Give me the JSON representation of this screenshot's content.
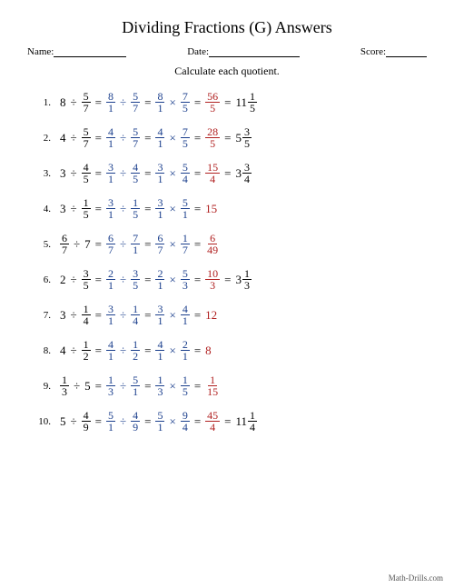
{
  "title": "Dividing Fractions (G) Answers",
  "labels": {
    "name": "Name:",
    "date": "Date:",
    "score": "Score:"
  },
  "instruction": "Calculate each quotient.",
  "footer": "Math-Drills.com",
  "colors": {
    "step": "#1a3e8c",
    "result": "#b02020",
    "final": "#000000"
  },
  "blanks": {
    "name_w": 80,
    "date_w": 100,
    "score_w": 45
  },
  "problems": [
    {
      "n": "1.",
      "lhs": {
        "type": "wf",
        "w": "8",
        "f": [
          "5",
          "7"
        ]
      },
      "s1": {
        "a": [
          "8",
          "1"
        ],
        "b": [
          "5",
          "7"
        ]
      },
      "s2": {
        "a": [
          "8",
          "1"
        ],
        "b": [
          "7",
          "5"
        ]
      },
      "res": [
        "56",
        "5"
      ],
      "final": {
        "type": "mixed",
        "w": "11",
        "f": [
          "1",
          "5"
        ]
      }
    },
    {
      "n": "2.",
      "lhs": {
        "type": "wf",
        "w": "4",
        "f": [
          "5",
          "7"
        ]
      },
      "s1": {
        "a": [
          "4",
          "1"
        ],
        "b": [
          "5",
          "7"
        ]
      },
      "s2": {
        "a": [
          "4",
          "1"
        ],
        "b": [
          "7",
          "5"
        ]
      },
      "res": [
        "28",
        "5"
      ],
      "final": {
        "type": "mixed",
        "w": "5",
        "f": [
          "3",
          "5"
        ]
      }
    },
    {
      "n": "3.",
      "lhs": {
        "type": "wf",
        "w": "3",
        "f": [
          "4",
          "5"
        ]
      },
      "s1": {
        "a": [
          "3",
          "1"
        ],
        "b": [
          "4",
          "5"
        ]
      },
      "s2": {
        "a": [
          "3",
          "1"
        ],
        "b": [
          "5",
          "4"
        ]
      },
      "res": [
        "15",
        "4"
      ],
      "final": {
        "type": "mixed",
        "w": "3",
        "f": [
          "3",
          "4"
        ]
      }
    },
    {
      "n": "4.",
      "lhs": {
        "type": "wf",
        "w": "3",
        "f": [
          "1",
          "5"
        ]
      },
      "s1": {
        "a": [
          "3",
          "1"
        ],
        "b": [
          "1",
          "5"
        ]
      },
      "s2": {
        "a": [
          "3",
          "1"
        ],
        "b": [
          "5",
          "1"
        ]
      },
      "res": null,
      "final": {
        "type": "whole",
        "w": "15"
      }
    },
    {
      "n": "5.",
      "lhs": {
        "type": "fw",
        "f": [
          "6",
          "7"
        ],
        "w": "7"
      },
      "s1": {
        "a": [
          "6",
          "7"
        ],
        "b": [
          "7",
          "1"
        ]
      },
      "s2": {
        "a": [
          "6",
          "7"
        ],
        "b": [
          "1",
          "7"
        ]
      },
      "res": [
        "6",
        "49"
      ],
      "final": null
    },
    {
      "n": "6.",
      "lhs": {
        "type": "wf",
        "w": "2",
        "f": [
          "3",
          "5"
        ]
      },
      "s1": {
        "a": [
          "2",
          "1"
        ],
        "b": [
          "3",
          "5"
        ]
      },
      "s2": {
        "a": [
          "2",
          "1"
        ],
        "b": [
          "5",
          "3"
        ]
      },
      "res": [
        "10",
        "3"
      ],
      "final": {
        "type": "mixed",
        "w": "3",
        "f": [
          "1",
          "3"
        ]
      }
    },
    {
      "n": "7.",
      "lhs": {
        "type": "wf",
        "w": "3",
        "f": [
          "1",
          "4"
        ]
      },
      "s1": {
        "a": [
          "3",
          "1"
        ],
        "b": [
          "1",
          "4"
        ]
      },
      "s2": {
        "a": [
          "3",
          "1"
        ],
        "b": [
          "4",
          "1"
        ]
      },
      "res": null,
      "final": {
        "type": "whole",
        "w": "12"
      }
    },
    {
      "n": "8.",
      "lhs": {
        "type": "wf",
        "w": "4",
        "f": [
          "1",
          "2"
        ]
      },
      "s1": {
        "a": [
          "4",
          "1"
        ],
        "b": [
          "1",
          "2"
        ]
      },
      "s2": {
        "a": [
          "4",
          "1"
        ],
        "b": [
          "2",
          "1"
        ]
      },
      "res": null,
      "final": {
        "type": "whole",
        "w": "8"
      }
    },
    {
      "n": "9.",
      "lhs": {
        "type": "fw",
        "f": [
          "1",
          "3"
        ],
        "w": "5"
      },
      "s1": {
        "a": [
          "1",
          "3"
        ],
        "b": [
          "5",
          "1"
        ]
      },
      "s2": {
        "a": [
          "1",
          "3"
        ],
        "b": [
          "1",
          "5"
        ]
      },
      "res": [
        "1",
        "15"
      ],
      "final": null
    },
    {
      "n": "10.",
      "lhs": {
        "type": "wf",
        "w": "5",
        "f": [
          "4",
          "9"
        ]
      },
      "s1": {
        "a": [
          "5",
          "1"
        ],
        "b": [
          "4",
          "9"
        ]
      },
      "s2": {
        "a": [
          "5",
          "1"
        ],
        "b": [
          "9",
          "4"
        ]
      },
      "res": [
        "45",
        "4"
      ],
      "final": {
        "type": "mixed",
        "w": "11",
        "f": [
          "1",
          "4"
        ]
      }
    }
  ]
}
